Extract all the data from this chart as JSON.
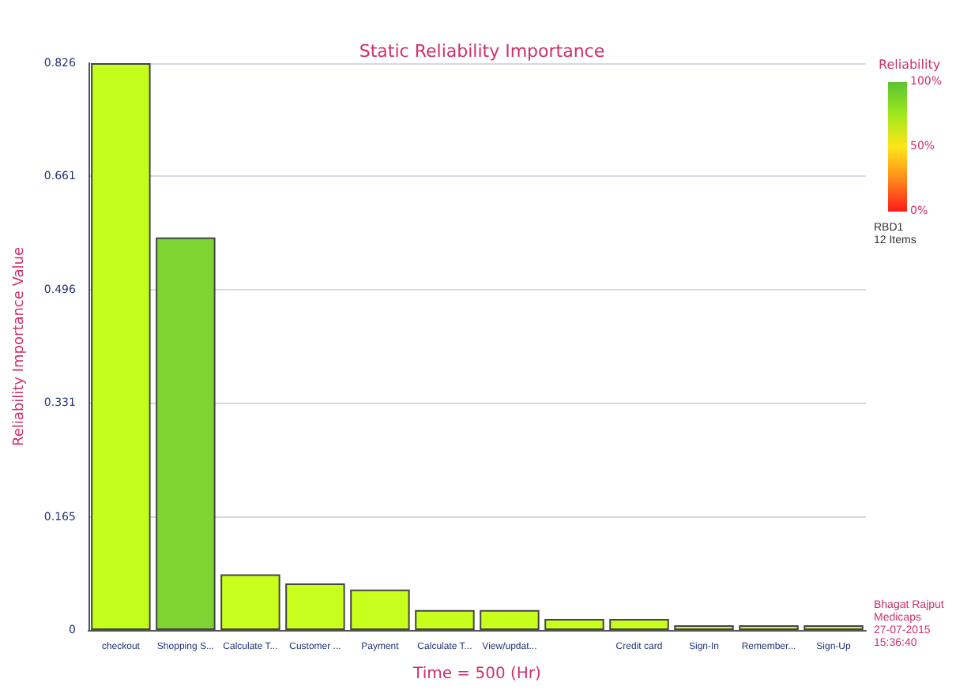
{
  "chart_data": {
    "type": "bar",
    "title": "Static Reliability Importance",
    "xlabel": "Time = 500 (Hr)",
    "ylabel": "Reliability Importance Value",
    "categories": [
      "checkout",
      "Shopping S...",
      "Calculate T...",
      "Customer ...",
      "Payment",
      "Calculate T...",
      "View/updat...",
      null,
      "Credit card",
      "Sign-In",
      "Remember...",
      "Sign-Up"
    ],
    "values": [
      0.826,
      0.572,
      0.081,
      0.068,
      0.059,
      0.029,
      0.029,
      0.016,
      0.016,
      0.007,
      0.007,
      0.007
    ],
    "colors": [
      "#c4ff1c",
      "#7ed432",
      "#c8ff1c",
      "#c8ff1c",
      "#c8ff1c",
      "#c8ff1c",
      "#c8ff1c",
      "#c8ff1c",
      "#c8ff1c",
      "#c8ff1c",
      "#c8ff1c",
      "#c8ff1c"
    ],
    "ylim": [
      0,
      0.826
    ],
    "yticks": [
      0,
      0.165,
      0.331,
      0.496,
      0.661,
      0.826
    ],
    "grid": "y",
    "clabel": "Reliability",
    "clim": [
      0,
      100
    ],
    "cticks": [
      {
        "value": 100,
        "label": "100%"
      },
      {
        "value": 50,
        "label": "50%"
      },
      {
        "value": 0,
        "label": "0%"
      }
    ],
    "annotations": [
      "RBD1",
      "12 Items",
      "Bhagat Rajput",
      "Medicaps",
      "27-07-2015",
      "15:36:40"
    ]
  }
}
